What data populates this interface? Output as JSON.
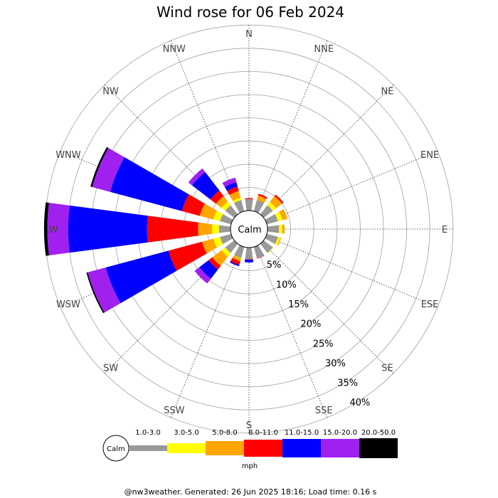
{
  "chart_data": {
    "type": "windrose",
    "title": "Wind rose for 06 Feb 2024",
    "directions": [
      "N",
      "NNE",
      "NE",
      "ENE",
      "E",
      "ESE",
      "SE",
      "SSE",
      "S",
      "SSW",
      "SW",
      "WSW",
      "W",
      "WNW",
      "NW",
      "NNW"
    ],
    "ring_labels": [
      "5%",
      "10%",
      "15%",
      "20%",
      "25%",
      "30%",
      "35%",
      "40%"
    ],
    "rlim": [
      0,
      45
    ],
    "calm_label": "Calm",
    "unit": "mph",
    "speed_bins": [
      {
        "name": "1.0-3.0",
        "color": "#999999"
      },
      {
        "name": "3.0-5.0",
        "color": "#ffff00"
      },
      {
        "name": "5.0-8.0",
        "color": "#ffa500"
      },
      {
        "name": "8.0-11.0",
        "color": "#ff0000"
      },
      {
        "name": "11.0-15.0",
        "color": "#0000ff"
      },
      {
        "name": "15.0-20.0",
        "color": "#a020f0"
      },
      {
        "name": "20.0-50.0",
        "color": "#000000"
      }
    ],
    "cumulative_percent": {
      "N": [
        2.5,
        2.5,
        2.5,
        2.7,
        2.7,
        2.7,
        2.7
      ],
      "NNE": [
        2.5,
        2.5,
        3.5,
        3.9,
        3.9,
        3.9,
        3.9
      ],
      "NE": [
        2.5,
        3.4,
        5.0,
        5.4,
        5.4,
        5.4,
        5.4
      ],
      "ENE": [
        2.5,
        3.5,
        4.6,
        4.6,
        4.6,
        4.6,
        4.6
      ],
      "E": [
        2.5,
        3.2,
        3.7,
        3.7,
        3.7,
        3.7,
        3.7
      ],
      "ESE": [
        2.5,
        3.0,
        3.2,
        3.2,
        3.2,
        3.2,
        3.2
      ],
      "SE": [
        2.5,
        2.6,
        2.6,
        2.6,
        2.6,
        2.6,
        2.6
      ],
      "SSE": [
        2.5,
        2.5,
        2.5,
        2.6,
        2.6,
        2.6,
        2.6
      ],
      "S": [
        2.5,
        2.5,
        2.5,
        2.6,
        3.2,
        3.2,
        3.2
      ],
      "SSW": [
        2.5,
        2.6,
        3.2,
        4.0,
        4.3,
        4.3,
        4.3
      ],
      "SW": [
        2.5,
        3.5,
        6.0,
        7.0,
        9.5,
        10.8,
        10.8
      ],
      "WSW": [
        2.5,
        4.0,
        6.5,
        14.0,
        28.0,
        32.0,
        32.3
      ],
      "W": [
        2.5,
        4.0,
        7.0,
        18.0,
        35.0,
        39.5,
        40.2
      ],
      "WNW": [
        2.5,
        4.0,
        7.0,
        11.0,
        27.0,
        31.0,
        31.4
      ],
      "NW": [
        2.5,
        3.5,
        5.0,
        6.5,
        11.5,
        12.5,
        12.5
      ],
      "NNW": [
        2.5,
        3.0,
        4.5,
        5.5,
        6.5,
        7.5,
        7.5
      ]
    }
  },
  "footer": "@nw3weather.  Generated: 26 Jun 2025 18:16; Load time: 0.16 s"
}
